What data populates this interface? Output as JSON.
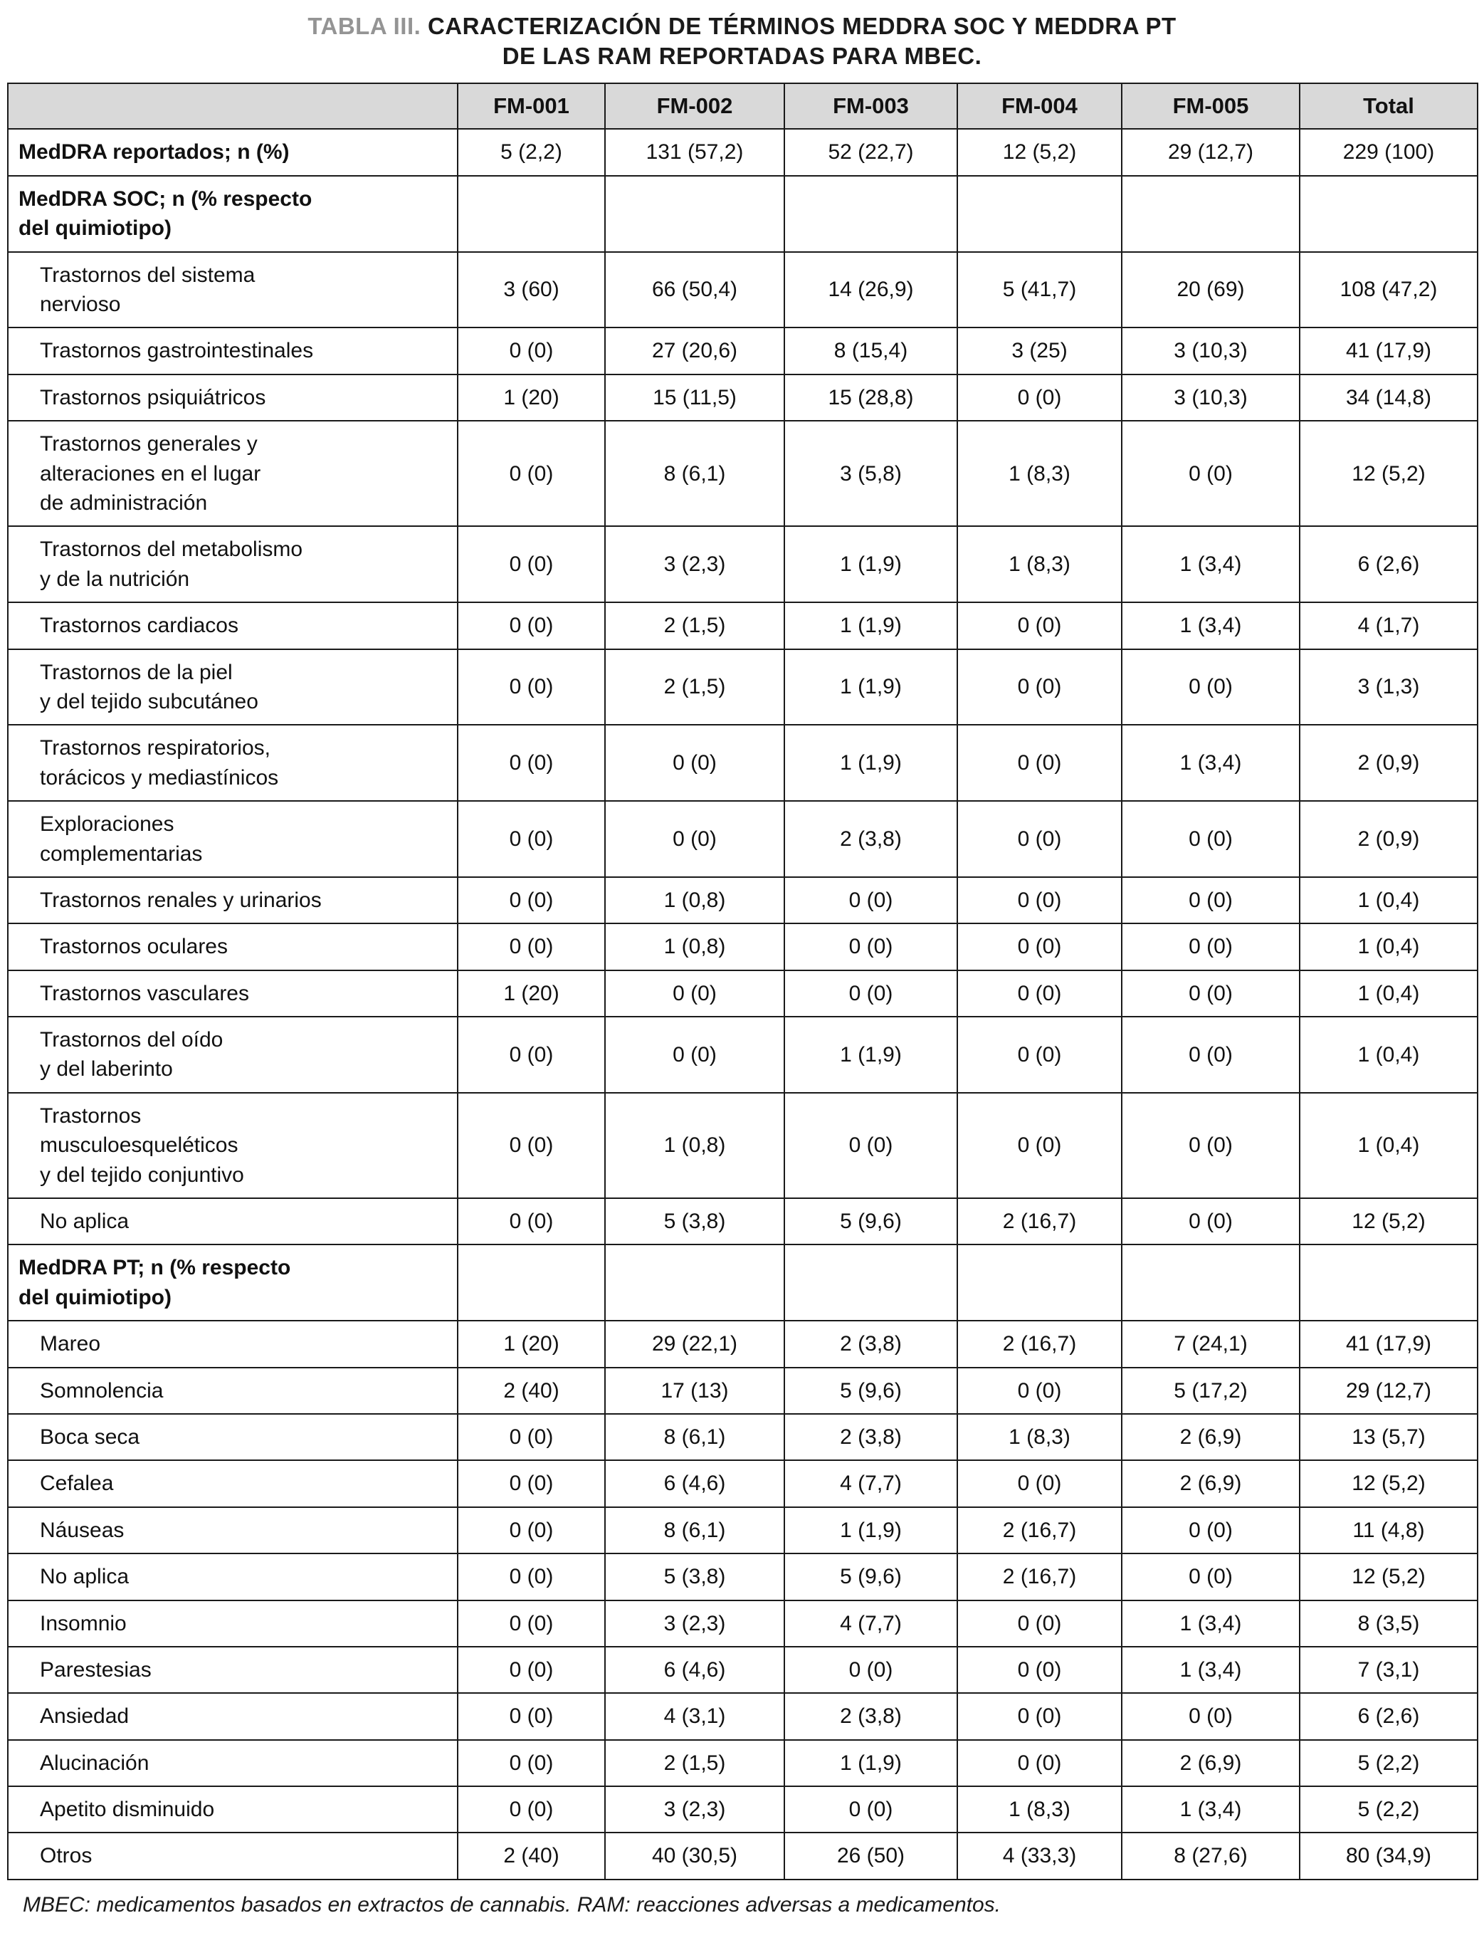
{
  "title": {
    "tag": "TABLA III.",
    "line1": " CARACTERIZACIÓN DE TÉRMINOS MEDDRA SOC Y MEDDRA PT",
    "line2": "DE LAS RAM REPORTADAS PARA MBEC."
  },
  "table": {
    "columns": [
      "",
      "FM-001",
      "FM-002",
      "FM-003",
      "FM-004",
      "FM-005",
      "Total"
    ],
    "rows": [
      {
        "type": "bold",
        "label": "MedDRA reportados; n (%)",
        "values": [
          "5 (2,2)",
          "131 (57,2)",
          "52 (22,7)",
          "12 (5,2)",
          "29 (12,7)",
          "229 (100)"
        ]
      },
      {
        "type": "section",
        "label": "MedDRA SOC; n (% respecto\ndel quimiotipo)",
        "values": [
          "",
          "",
          "",
          "",
          "",
          ""
        ]
      },
      {
        "type": "data",
        "label": "Trastornos del sistema\nnervioso",
        "values": [
          "3 (60)",
          "66 (50,4)",
          "14 (26,9)",
          "5 (41,7)",
          "20 (69)",
          "108 (47,2)"
        ]
      },
      {
        "type": "data",
        "label": "Trastornos gastrointestinales",
        "values": [
          "0 (0)",
          "27 (20,6)",
          "8 (15,4)",
          "3 (25)",
          "3 (10,3)",
          "41 (17,9)"
        ]
      },
      {
        "type": "data",
        "label": "Trastornos psiquiátricos",
        "values": [
          "1 (20)",
          "15 (11,5)",
          "15 (28,8)",
          "0 (0)",
          "3 (10,3)",
          "34 (14,8)"
        ]
      },
      {
        "type": "data",
        "label": "Trastornos generales y\nalteraciones en el lugar\nde administración",
        "values": [
          "0 (0)",
          "8 (6,1)",
          "3 (5,8)",
          "1 (8,3)",
          "0 (0)",
          "12 (5,2)"
        ]
      },
      {
        "type": "data",
        "label": "Trastornos del metabolismo\ny de la nutrición",
        "values": [
          "0 (0)",
          "3 (2,3)",
          "1 (1,9)",
          "1 (8,3)",
          "1 (3,4)",
          "6 (2,6)"
        ]
      },
      {
        "type": "data",
        "label": "Trastornos cardiacos",
        "values": [
          "0 (0)",
          "2 (1,5)",
          "1 (1,9)",
          "0 (0)",
          "1 (3,4)",
          "4 (1,7)"
        ]
      },
      {
        "type": "data",
        "label": "Trastornos de la piel\ny del tejido subcutáneo",
        "values": [
          "0 (0)",
          "2 (1,5)",
          "1 (1,9)",
          "0 (0)",
          "0 (0)",
          "3 (1,3)"
        ]
      },
      {
        "type": "data",
        "label": "Trastornos respiratorios,\ntorácicos y mediastínicos",
        "values": [
          "0 (0)",
          "0 (0)",
          "1 (1,9)",
          "0 (0)",
          "1 (3,4)",
          "2 (0,9)"
        ]
      },
      {
        "type": "data",
        "label": "Exploraciones\ncomplementarias",
        "values": [
          "0 (0)",
          "0 (0)",
          "2 (3,8)",
          "0 (0)",
          "0 (0)",
          "2 (0,9)"
        ]
      },
      {
        "type": "data",
        "label": "Trastornos renales y urinarios",
        "values": [
          "0 (0)",
          "1 (0,8)",
          "0 (0)",
          "0 (0)",
          "0 (0)",
          "1 (0,4)"
        ]
      },
      {
        "type": "data",
        "label": "Trastornos oculares",
        "values": [
          "0 (0)",
          "1 (0,8)",
          "0 (0)",
          "0 (0)",
          "0 (0)",
          "1 (0,4)"
        ]
      },
      {
        "type": "data",
        "label": "Trastornos vasculares",
        "values": [
          "1 (20)",
          "0 (0)",
          "0 (0)",
          "0 (0)",
          "0 (0)",
          "1 (0,4)"
        ]
      },
      {
        "type": "data",
        "label": "Trastornos del oído\ny del laberinto",
        "values": [
          "0 (0)",
          "0 (0)",
          "1 (1,9)",
          "0 (0)",
          "0 (0)",
          "1 (0,4)"
        ]
      },
      {
        "type": "data",
        "label": "Trastornos\nmusculoesqueléticos\ny del tejido conjuntivo",
        "values": [
          "0 (0)",
          "1 (0,8)",
          "0 (0)",
          "0 (0)",
          "0 (0)",
          "1 (0,4)"
        ]
      },
      {
        "type": "data",
        "label": "No aplica",
        "values": [
          "0 (0)",
          "5 (3,8)",
          "5 (9,6)",
          "2 (16,7)",
          "0 (0)",
          "12 (5,2)"
        ]
      },
      {
        "type": "section",
        "label": "MedDRA PT; n (% respecto\ndel quimiotipo)",
        "values": [
          "",
          "",
          "",
          "",
          "",
          ""
        ]
      },
      {
        "type": "data",
        "label": "Mareo",
        "values": [
          "1 (20)",
          "29 (22,1)",
          "2 (3,8)",
          "2 (16,7)",
          "7 (24,1)",
          "41 (17,9)"
        ]
      },
      {
        "type": "data",
        "label": "Somnolencia",
        "values": [
          "2 (40)",
          "17 (13)",
          "5 (9,6)",
          "0 (0)",
          "5 (17,2)",
          "29 (12,7)"
        ]
      },
      {
        "type": "data",
        "label": "Boca seca",
        "values": [
          "0 (0)",
          "8 (6,1)",
          "2 (3,8)",
          "1 (8,3)",
          "2 (6,9)",
          "13 (5,7)"
        ]
      },
      {
        "type": "data",
        "label": "Cefalea",
        "values": [
          "0 (0)",
          "6 (4,6)",
          "4 (7,7)",
          "0 (0)",
          "2 (6,9)",
          "12 (5,2)"
        ]
      },
      {
        "type": "data",
        "label": "Náuseas",
        "values": [
          "0 (0)",
          "8 (6,1)",
          "1 (1,9)",
          "2 (16,7)",
          "0 (0)",
          "11 (4,8)"
        ]
      },
      {
        "type": "data",
        "label": "No aplica",
        "values": [
          "0 (0)",
          "5 (3,8)",
          "5 (9,6)",
          "2 (16,7)",
          "0 (0)",
          "12 (5,2)"
        ]
      },
      {
        "type": "data",
        "label": "Insomnio",
        "values": [
          "0 (0)",
          "3 (2,3)",
          "4 (7,7)",
          "0 (0)",
          "1 (3,4)",
          "8 (3,5)"
        ]
      },
      {
        "type": "data",
        "label": "Parestesias",
        "values": [
          "0 (0)",
          "6 (4,6)",
          "0 (0)",
          "0 (0)",
          "1 (3,4)",
          "7 (3,1)"
        ]
      },
      {
        "type": "data",
        "label": "Ansiedad",
        "values": [
          "0 (0)",
          "4 (3,1)",
          "2 (3,8)",
          "0 (0)",
          "0 (0)",
          "6 (2,6)"
        ]
      },
      {
        "type": "data",
        "label": "Alucinación",
        "values": [
          "0 (0)",
          "2 (1,5)",
          "1 (1,9)",
          "0 (0)",
          "2 (6,9)",
          "5 (2,2)"
        ]
      },
      {
        "type": "data",
        "label": "Apetito disminuido",
        "values": [
          "0 (0)",
          "3 (2,3)",
          "0 (0)",
          "1 (8,3)",
          "1 (3,4)",
          "5 (2,2)"
        ]
      },
      {
        "type": "data",
        "label": "Otros",
        "values": [
          "2 (40)",
          "40 (30,5)",
          "26 (50)",
          "4 (33,3)",
          "8 (27,6)",
          "80 (34,9)"
        ]
      }
    ]
  },
  "footnote": "MBEC: medicamentos basados en extractos de cannabis. RAM: reacciones adversas a medicamentos."
}
